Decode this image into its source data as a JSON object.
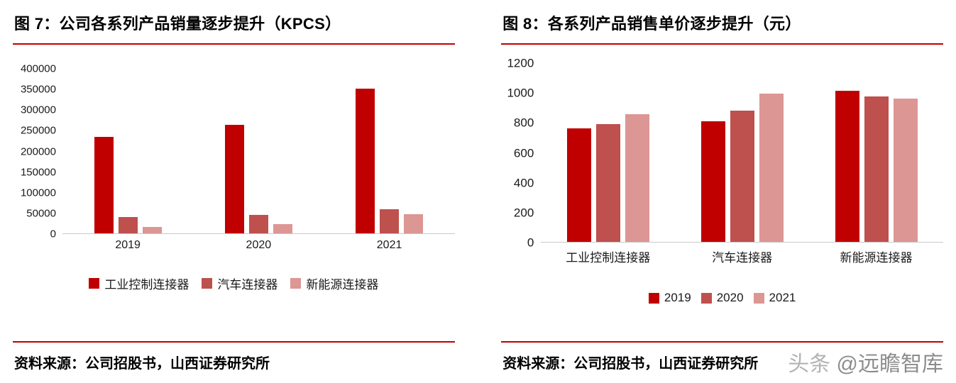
{
  "panels": [
    {
      "title": "图 7：公司各系列产品销量逐步提升（KPCS）",
      "source": "资料来源：公司招股书，山西证券研究所"
    },
    {
      "title": "图 8：各系列产品销售单价逐步提升（元）",
      "source": "资料来源：公司招股书，山西证券研究所"
    }
  ],
  "watermark": {
    "prefix": "头条",
    "handle": "@远瞻智库"
  },
  "chart_data": [
    {
      "type": "bar",
      "title": "公司各系列产品销量逐步提升",
      "unit": "KPCS",
      "categories": [
        "2019",
        "2020",
        "2021"
      ],
      "series": [
        {
          "name": "工业控制连接器",
          "color": "#C00000",
          "values": [
            235000,
            263000,
            352000
          ]
        },
        {
          "name": "汽车连接器",
          "color": "#BE504E",
          "values": [
            40000,
            45000,
            58000
          ]
        },
        {
          "name": "新能源连接器",
          "color": "#DC9694",
          "values": [
            15000,
            23000,
            46000
          ]
        }
      ],
      "ylim": [
        0,
        400000
      ],
      "yticks": [
        0,
        50000,
        100000,
        150000,
        200000,
        250000,
        300000,
        350000,
        400000
      ],
      "grid": false,
      "legend_position": "bottom"
    },
    {
      "type": "bar",
      "title": "各系列产品销售单价逐步提升",
      "unit": "元",
      "categories": [
        "工业控制连接器",
        "汽车连接器",
        "新能源连接器"
      ],
      "series": [
        {
          "name": "2019",
          "color": "#C00000",
          "values": [
            760,
            810,
            1015
          ]
        },
        {
          "name": "2020",
          "color": "#BE504E",
          "values": [
            790,
            880,
            975
          ]
        },
        {
          "name": "2021",
          "color": "#DC9694",
          "values": [
            855,
            995,
            960
          ]
        }
      ],
      "ylim": [
        0,
        1200
      ],
      "yticks": [
        0,
        200,
        400,
        600,
        800,
        1000,
        1200
      ],
      "grid": false,
      "legend_position": "bottom"
    }
  ],
  "colors": {
    "accent_red": "#C00000",
    "axis_line": "#C9C9C9",
    "watermark_gray": "#8C8C8C"
  }
}
